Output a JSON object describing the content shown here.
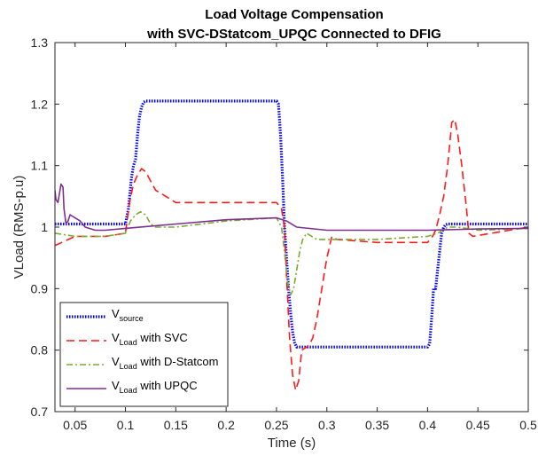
{
  "chart_data": {
    "type": "line",
    "title": [
      "Load Voltage Compensation",
      "with SVC-DStatcom_UPQC Connected to DFIG"
    ],
    "xlabel": "Time (s)",
    "ylabel": "VLoad (RMS-p.u)",
    "xlim": [
      0.03,
      0.5
    ],
    "ylim": [
      0.7,
      1.3
    ],
    "xticks": [
      0.05,
      0.1,
      0.15,
      0.2,
      0.25,
      0.3,
      0.35,
      0.4,
      0.45,
      0.5
    ],
    "xtick_labels": [
      "0.05",
      "0.1",
      "0.15",
      "0.2",
      "0.25",
      "0.3",
      "0.35",
      "0.4",
      "0.45",
      "0.5"
    ],
    "yticks": [
      0.7,
      0.8,
      0.9,
      1.0,
      1.1,
      1.2,
      1.3
    ],
    "ytick_labels": [
      "0.7",
      "0.8",
      "0.9",
      "1",
      "1.1",
      "1.2",
      "1.3"
    ],
    "grid": false,
    "legend_position": "bottom-left",
    "series": [
      {
        "name": "V",
        "name_sub": "source",
        "name_suffix": "",
        "color": "#0000ff",
        "style": "dotted",
        "x": [
          0.03,
          0.1,
          0.103,
          0.106,
          0.108,
          0.11,
          0.112,
          0.114,
          0.116,
          0.118,
          0.12,
          0.15,
          0.2,
          0.25,
          0.252,
          0.254,
          0.256,
          0.258,
          0.26,
          0.262,
          0.264,
          0.266,
          0.268,
          0.27,
          0.3,
          0.35,
          0.4,
          0.402,
          0.404,
          0.406,
          0.408,
          0.41,
          0.412,
          0.414,
          0.416,
          0.418,
          0.42,
          0.45,
          0.5
        ],
        "y": [
          1.005,
          1.005,
          1.03,
          1.08,
          1.1,
          1.11,
          1.15,
          1.18,
          1.195,
          1.203,
          1.205,
          1.205,
          1.205,
          1.205,
          1.2,
          1.15,
          1.08,
          1.0,
          0.95,
          0.9,
          0.86,
          0.83,
          0.812,
          0.805,
          0.805,
          0.805,
          0.805,
          0.81,
          0.85,
          0.9,
          0.9,
          0.93,
          0.96,
          0.99,
          1.0,
          1.004,
          1.005,
          1.005,
          1.005
        ]
      },
      {
        "name": "V",
        "name_sub": "Load",
        "name_suffix": " with SVC",
        "color": "#ff1a1a",
        "style": "dashed",
        "x": [
          0.03,
          0.05,
          0.08,
          0.1,
          0.104,
          0.108,
          0.112,
          0.116,
          0.12,
          0.125,
          0.13,
          0.14,
          0.15,
          0.17,
          0.2,
          0.25,
          0.255,
          0.258,
          0.26,
          0.263,
          0.266,
          0.269,
          0.272,
          0.275,
          0.28,
          0.283,
          0.286,
          0.29,
          0.295,
          0.3,
          0.305,
          0.31,
          0.35,
          0.4,
          0.405,
          0.408,
          0.412,
          0.416,
          0.42,
          0.424,
          0.427,
          0.43,
          0.434,
          0.438,
          0.441,
          0.445,
          0.5
        ],
        "y": [
          0.97,
          0.985,
          0.985,
          0.99,
          1.04,
          1.07,
          1.085,
          1.095,
          1.09,
          1.075,
          1.06,
          1.05,
          1.04,
          1.04,
          1.04,
          1.04,
          1.03,
          1.0,
          0.92,
          0.82,
          0.76,
          0.735,
          0.75,
          0.8,
          0.805,
          0.81,
          0.82,
          0.85,
          0.9,
          0.95,
          0.985,
          0.98,
          0.975,
          0.975,
          0.985,
          0.995,
          1.02,
          1.05,
          1.1,
          1.17,
          1.175,
          1.15,
          1.1,
          1.04,
          0.99,
          0.985,
          1.0
        ]
      },
      {
        "name": "V",
        "name_sub": "Load",
        "name_suffix": " with D-Statcom",
        "color": "#77ac30",
        "style": "dashdot",
        "x": [
          0.03,
          0.05,
          0.08,
          0.1,
          0.105,
          0.11,
          0.115,
          0.12,
          0.125,
          0.13,
          0.14,
          0.15,
          0.2,
          0.25,
          0.255,
          0.258,
          0.261,
          0.264,
          0.267,
          0.27,
          0.273,
          0.276,
          0.28,
          0.285,
          0.29,
          0.3,
          0.35,
          0.4,
          0.41,
          0.42,
          0.43,
          0.45,
          0.5
        ],
        "y": [
          0.99,
          0.985,
          0.985,
          0.99,
          1.01,
          1.02,
          1.025,
          1.02,
          1.005,
          1.0,
          1.0,
          1.0,
          1.01,
          1.015,
          1.0,
          0.96,
          0.91,
          0.89,
          0.9,
          0.93,
          0.96,
          0.98,
          0.99,
          0.985,
          0.98,
          0.98,
          0.98,
          0.985,
          0.99,
          1.0,
          1.0,
          0.995,
          0.998
        ]
      },
      {
        "name": "V",
        "name_sub": "Load",
        "name_suffix": " with UPQC",
        "color": "#7e2f8e",
        "style": "solid",
        "x": [
          0.03,
          0.031,
          0.033,
          0.035,
          0.036,
          0.038,
          0.039,
          0.041,
          0.043,
          0.045,
          0.047,
          0.05,
          0.055,
          0.06,
          0.07,
          0.08,
          0.1,
          0.15,
          0.2,
          0.25,
          0.26,
          0.27,
          0.3,
          0.35,
          0.4,
          0.45,
          0.5
        ],
        "y": [
          1.06,
          1.045,
          1.04,
          1.06,
          1.07,
          1.065,
          1.03,
          1.005,
          1.01,
          1.02,
          1.018,
          1.015,
          1.01,
          1.0,
          0.995,
          0.995,
          0.998,
          1.005,
          1.012,
          1.015,
          1.01,
          1.0,
          0.995,
          0.995,
          0.995,
          0.997,
          0.998
        ]
      }
    ]
  }
}
